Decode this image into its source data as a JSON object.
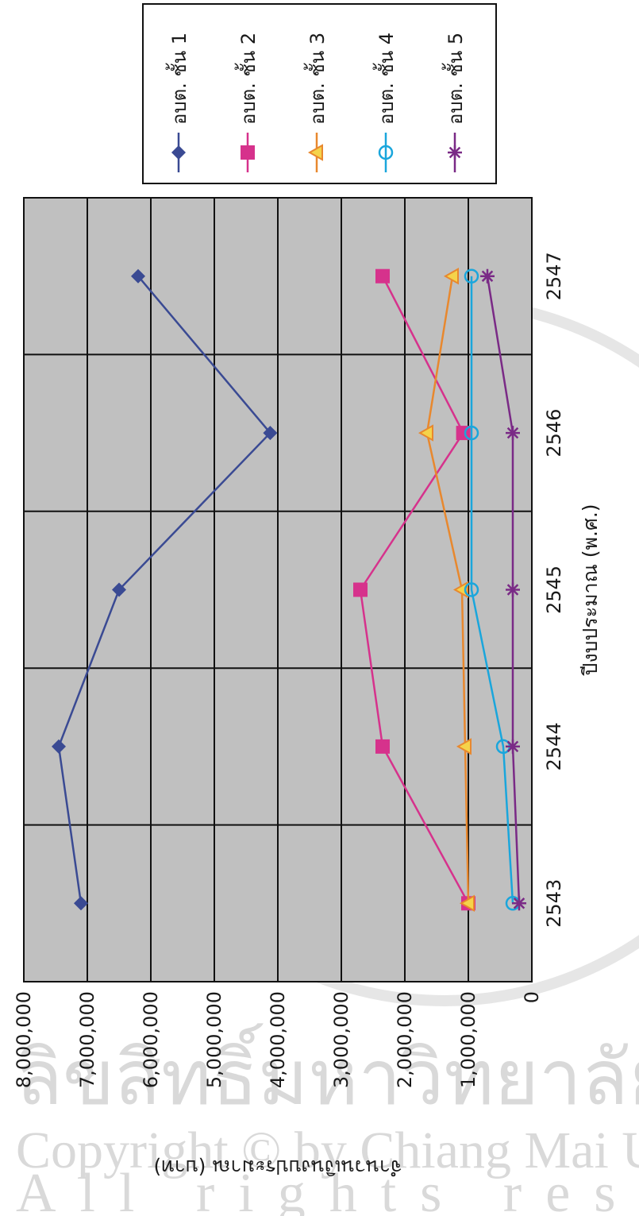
{
  "watermark": {
    "line1": "ลิขสิทธิ์มหาวิทยาลัยเชียงใหม่",
    "line2": "Copyright © by Chiang Mai University",
    "line3": "All rights reserved"
  },
  "chart_data": {
    "type": "line",
    "title": "",
    "xlabel": "ปีงบประมาณ (พ.ศ.)",
    "ylabel": "จำนวนเงินงบประมาณ (บาท)",
    "categories": [
      "2543",
      "2544",
      "2545",
      "2546",
      "2547"
    ],
    "ylim": [
      0,
      8000000
    ],
    "yticks": [
      0,
      1000000,
      2000000,
      3000000,
      4000000,
      5000000,
      6000000,
      7000000,
      8000000
    ],
    "ytick_labels": [
      "0",
      "1,000,000",
      "2,000,000",
      "3,000,000",
      "4,000,000",
      "5,000,000",
      "6,000,000",
      "7,000,000",
      "8,000,000"
    ],
    "grid": true,
    "legend_position": "top-right",
    "background": "#c0c0c0",
    "series": [
      {
        "name": "อบต. ชั้น 1",
        "color": "#3a4a93",
        "marker": "diamond",
        "values": [
          7100000,
          7450000,
          6500000,
          4120000,
          6200000
        ]
      },
      {
        "name": "อบต. ชั้น 2",
        "color": "#d6328c",
        "marker": "square",
        "values": [
          1000000,
          2350000,
          2700000,
          1080000,
          2350000
        ]
      },
      {
        "name": "อบต. ชั้น 3",
        "color": "#e8882e",
        "marker": "triangle",
        "values": [
          1000000,
          1050000,
          1100000,
          1650000,
          1250000
        ]
      },
      {
        "name": "อบต. ชั้น 4",
        "color": "#1aa6dc",
        "marker": "circle",
        "values": [
          300000,
          450000,
          950000,
          950000,
          950000
        ]
      },
      {
        "name": "อบต. ชั้น 5",
        "color": "#7a2a86",
        "marker": "asterisk",
        "values": [
          200000,
          300000,
          300000,
          300000,
          700000
        ]
      }
    ]
  }
}
